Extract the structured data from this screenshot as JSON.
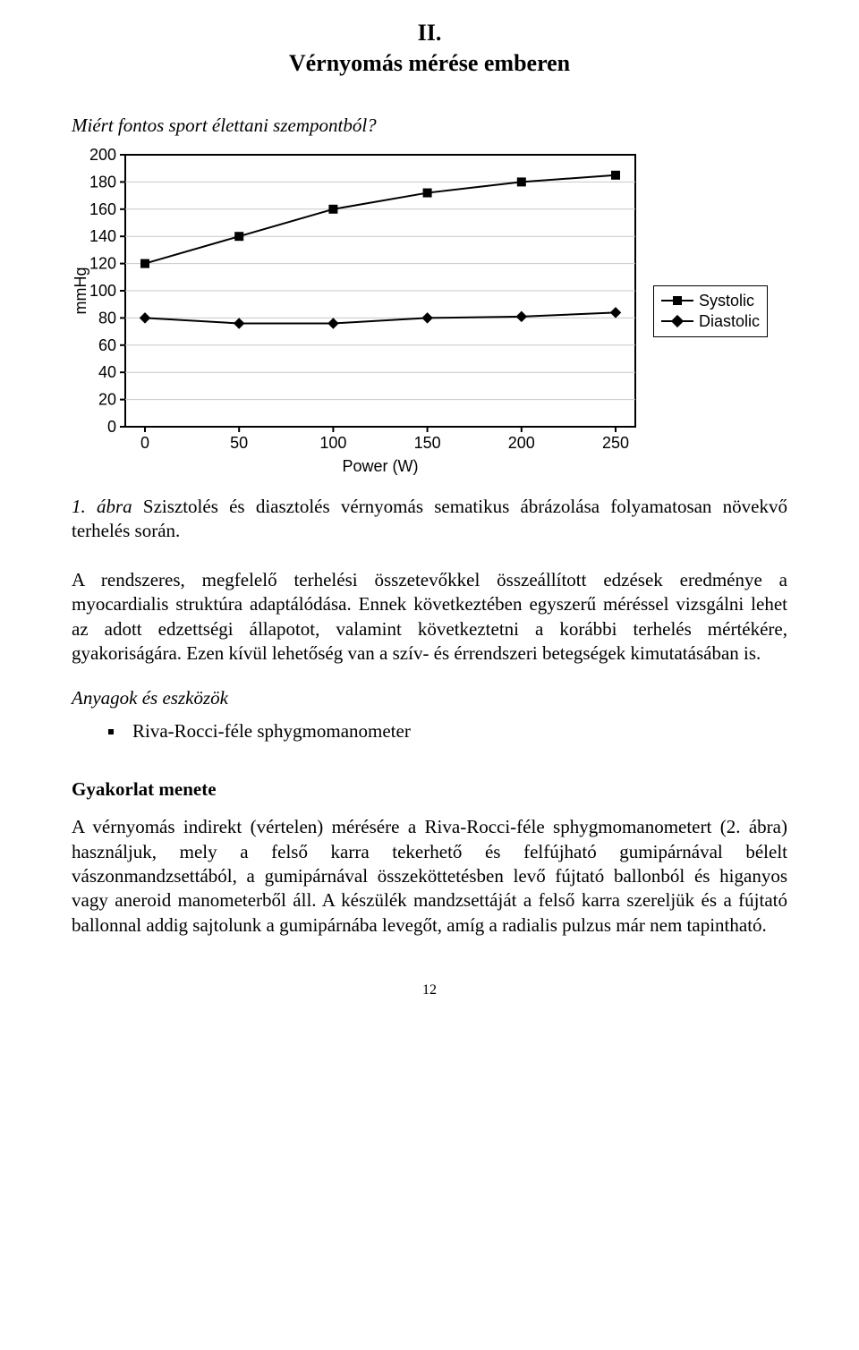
{
  "heading": {
    "line1": "II.",
    "line2": "Vérnyomás mérése emberen"
  },
  "question": "Miért fontos sport élettani szempontból?",
  "caption_fig": "1. ábra",
  "caption_text": " Szisztolés és diasztolés vérnyomás sematikus ábrázolása folyamatosan növekvő terhelés során.",
  "paragraph1": "A rendszeres, megfelelő terhelési összetevőkkel összeállított edzések eredménye a myocardialis struktúra adaptálódása. Ennek következtében egyszerű méréssel vizsgálni lehet az adott edzettségi állapotot, valamint következtetni a korábbi terhelés mértékére, gyakoriságára. Ezen kívül lehetőség van a szív- és érrendszeri betegségek kimutatásában is.",
  "tools_heading": "Anyagok és eszközök",
  "tool_item": "Riva-Rocci-féle sphygmomanometer",
  "method_heading": "Gyakorlat menete",
  "paragraph2": "A vérnyomás indirekt (vértelen) mérésére a Riva-Rocci-féle sphygmomanometert (2. ábra) használjuk, mely a felső karra tekerhető és felfújható gumipárnával bélelt vászonmandzsettából, a gumipárnával összeköttetésben levő fújtató ballonból és higanyos vagy aneroid manometerből áll. A készülék mandzsettáját a felső karra szereljük és a fújtató ballonnal addig sajtolunk a gumipárnába levegőt, amíg a radialis pulzus már nem tapintható.",
  "page_number": "12",
  "chart": {
    "type": "line",
    "x_label": "Power (W)",
    "y_label": "mmHg",
    "x_ticks": [
      0,
      50,
      100,
      150,
      200,
      250
    ],
    "y_ticks": [
      0,
      20,
      40,
      60,
      80,
      100,
      120,
      140,
      160,
      180,
      200
    ],
    "ylim": [
      0,
      200
    ],
    "series": [
      {
        "name": "Systolic",
        "marker": "square",
        "points": [
          [
            0,
            120
          ],
          [
            50,
            140
          ],
          [
            100,
            160
          ],
          [
            150,
            172
          ],
          [
            200,
            180
          ],
          [
            250,
            185
          ]
        ]
      },
      {
        "name": "Diastolic",
        "marker": "diamond",
        "points": [
          [
            0,
            80
          ],
          [
            50,
            76
          ],
          [
            100,
            76
          ],
          [
            150,
            80
          ],
          [
            200,
            81
          ],
          [
            250,
            84
          ]
        ]
      }
    ],
    "colors": {
      "axis": "#000000",
      "grid": "#c8c8c8",
      "line": "#000000",
      "bg": "#ffffff",
      "plot_border": "#000000"
    },
    "line_width": 2,
    "marker_size": 10,
    "font_family": "Arial",
    "tick_fontsize": 18,
    "label_fontsize": 18
  },
  "legend": {
    "items": [
      "Systolic",
      "Diastolic"
    ]
  }
}
